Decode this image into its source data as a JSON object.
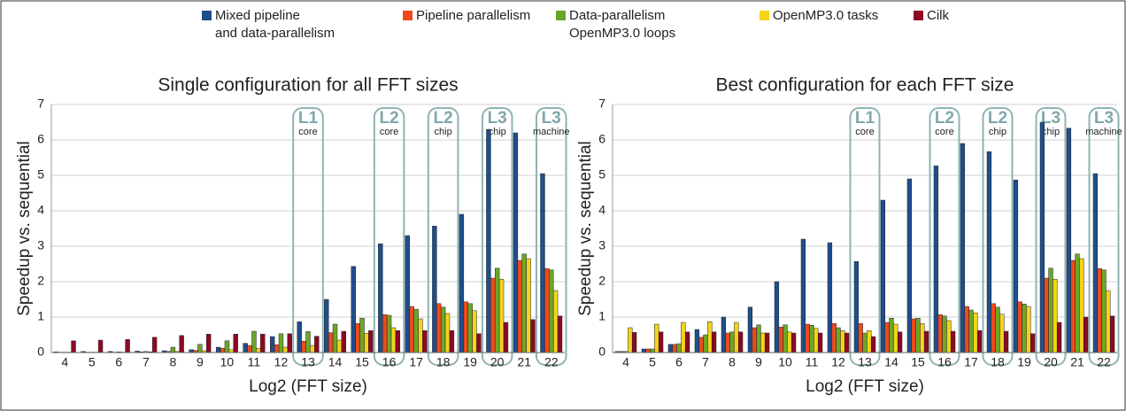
{
  "chart_data": [
    {
      "type": "bar",
      "title": "Single configuration for all FFT sizes",
      "xlabel": "Log2 (FFT size)",
      "ylabel": "Speedup vs. sequential",
      "categories": [
        "4",
        "5",
        "6",
        "7",
        "8",
        "9",
        "10",
        "11",
        "12",
        "13",
        "14",
        "15",
        "16",
        "17",
        "18",
        "19",
        "20",
        "21",
        "22"
      ],
      "ylim": [
        0,
        7
      ],
      "yticks": [
        0,
        1,
        2,
        3,
        4,
        5,
        6,
        7
      ],
      "grid": true,
      "series": [
        {
          "name": "Mixed pipeline\nand data-parallelism",
          "color": "#1f4e8c",
          "values": [
            0.02,
            0.03,
            0.03,
            0.04,
            0.05,
            0.08,
            0.15,
            0.26,
            0.45,
            0.87,
            1.5,
            2.43,
            3.07,
            3.3,
            3.57,
            3.9,
            6.3,
            6.2,
            5.05
          ]
        },
        {
          "name": "Pipeline parallelism",
          "color": "#f04a1c",
          "values": [
            0.01,
            0.01,
            0.01,
            0.02,
            0.03,
            0.06,
            0.12,
            0.2,
            0.22,
            0.32,
            0.56,
            0.82,
            1.07,
            1.3,
            1.38,
            1.43,
            2.1,
            2.6,
            2.37
          ]
        },
        {
          "name": "Data-parallelism\nOpenMP3.0 loops",
          "color": "#6aa728",
          "values": [
            0.01,
            0.01,
            0.02,
            0.03,
            0.15,
            0.23,
            0.33,
            0.6,
            0.53,
            0.59,
            0.8,
            0.97,
            1.05,
            1.22,
            1.28,
            1.38,
            2.38,
            2.78,
            2.33
          ]
        },
        {
          "name": "OpenMP3.0 tasks",
          "color": "#f5d41a",
          "values": [
            0.01,
            0.01,
            0.01,
            0.02,
            0.03,
            0.05,
            0.08,
            0.12,
            0.15,
            0.2,
            0.35,
            0.54,
            0.7,
            0.95,
            1.1,
            1.18,
            2.07,
            2.65,
            1.75
          ]
        },
        {
          "name": "Cilk",
          "color": "#8b0a24",
          "values": [
            0.33,
            0.35,
            0.37,
            0.43,
            0.48,
            0.52,
            0.52,
            0.52,
            0.53,
            0.46,
            0.6,
            0.62,
            0.62,
            0.62,
            0.62,
            0.53,
            0.85,
            0.93,
            1.03
          ]
        }
      ],
      "annotations": [
        {
          "category": "13",
          "label": "L1",
          "note": "core"
        },
        {
          "category": "16",
          "label": "L2",
          "note": "core"
        },
        {
          "category": "18",
          "label": "L2",
          "note": "chip"
        },
        {
          "category": "20",
          "label": "L3",
          "note": "chip"
        },
        {
          "category": "22",
          "label": "L3",
          "note": "machine"
        }
      ]
    },
    {
      "type": "bar",
      "title": "Best configuration for each FFT size",
      "xlabel": "Log2 (FFT size)",
      "ylabel": "Speedup vs. sequential",
      "categories": [
        "4",
        "5",
        "6",
        "7",
        "8",
        "9",
        "10",
        "11",
        "12",
        "13",
        "14",
        "15",
        "16",
        "17",
        "18",
        "19",
        "20",
        "21",
        "22"
      ],
      "ylim": [
        0,
        7
      ],
      "yticks": [
        0,
        1,
        2,
        3,
        4,
        5,
        6,
        7
      ],
      "grid": true,
      "series": [
        {
          "values": [
            0.03,
            0.1,
            0.23,
            0.65,
            1.0,
            1.28,
            2.0,
            3.2,
            3.1,
            2.57,
            4.3,
            4.9,
            5.27,
            5.9,
            5.67,
            4.87,
            6.5,
            6.33,
            5.05
          ]
        },
        {
          "values": [
            0.03,
            0.1,
            0.23,
            0.43,
            0.55,
            0.7,
            0.72,
            0.8,
            0.82,
            0.82,
            0.85,
            0.95,
            1.07,
            1.3,
            1.38,
            1.43,
            2.1,
            2.6,
            2.37
          ]
        },
        {
          "values": [
            0.03,
            0.1,
            0.25,
            0.5,
            0.58,
            0.78,
            0.78,
            0.77,
            0.7,
            0.55,
            0.97,
            0.97,
            1.03,
            1.2,
            1.28,
            1.37,
            2.38,
            2.78,
            2.33
          ]
        },
        {
          "values": [
            0.7,
            0.8,
            0.85,
            0.87,
            0.85,
            0.55,
            0.58,
            0.68,
            0.62,
            0.62,
            0.8,
            0.82,
            0.9,
            1.12,
            1.08,
            1.3,
            2.07,
            2.65,
            1.75
          ]
        },
        {
          "values": [
            0.57,
            0.58,
            0.58,
            0.58,
            0.58,
            0.55,
            0.55,
            0.55,
            0.55,
            0.45,
            0.58,
            0.6,
            0.6,
            0.62,
            0.6,
            0.53,
            0.85,
            1.0,
            1.03
          ]
        }
      ],
      "annotations": [
        {
          "category": "13",
          "label": "L1",
          "note": "core"
        },
        {
          "category": "16",
          "label": "L2",
          "note": "core"
        },
        {
          "category": "18",
          "label": "L2",
          "note": "chip"
        },
        {
          "category": "20",
          "label": "L3",
          "note": "chip"
        },
        {
          "category": "22",
          "label": "L3",
          "note": "machine"
        }
      ]
    }
  ]
}
